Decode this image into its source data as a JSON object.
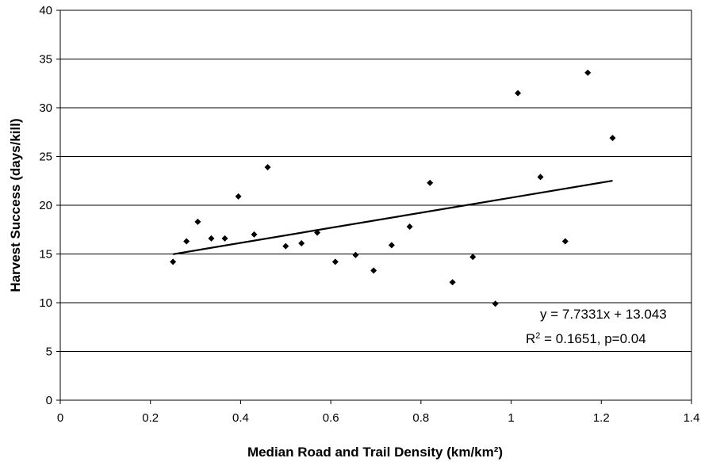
{
  "chart_data": {
    "type": "scatter",
    "title": "",
    "xlabel": "Median Road and Trail Density (km/km²)",
    "ylabel": "Harvest Success (days/kill)",
    "xlim": [
      0,
      1.4
    ],
    "ylim": [
      0,
      40
    ],
    "x_ticks": [
      "0",
      "0.2",
      "0.4",
      "0.6",
      "0.8",
      "1",
      "1.2",
      "1.4"
    ],
    "y_ticks": [
      "0",
      "5",
      "10",
      "15",
      "20",
      "25",
      "30",
      "35",
      "40"
    ],
    "grid": "horizontal",
    "points": [
      {
        "x": 0.25,
        "y": 14.2
      },
      {
        "x": 0.28,
        "y": 16.3
      },
      {
        "x": 0.305,
        "y": 18.3
      },
      {
        "x": 0.335,
        "y": 16.6
      },
      {
        "x": 0.365,
        "y": 16.6
      },
      {
        "x": 0.395,
        "y": 20.9
      },
      {
        "x": 0.43,
        "y": 17.0
      },
      {
        "x": 0.46,
        "y": 23.9
      },
      {
        "x": 0.5,
        "y": 15.8
      },
      {
        "x": 0.535,
        "y": 16.1
      },
      {
        "x": 0.57,
        "y": 17.2
      },
      {
        "x": 0.61,
        "y": 14.2
      },
      {
        "x": 0.655,
        "y": 14.9
      },
      {
        "x": 0.695,
        "y": 13.3
      },
      {
        "x": 0.735,
        "y": 15.9
      },
      {
        "x": 0.775,
        "y": 17.8
      },
      {
        "x": 0.82,
        "y": 22.3
      },
      {
        "x": 0.87,
        "y": 12.1
      },
      {
        "x": 0.915,
        "y": 14.7
      },
      {
        "x": 0.965,
        "y": 9.9
      },
      {
        "x": 1.015,
        "y": 31.5
      },
      {
        "x": 1.065,
        "y": 22.9
      },
      {
        "x": 1.12,
        "y": 16.3
      },
      {
        "x": 1.17,
        "y": 33.6
      },
      {
        "x": 1.225,
        "y": 26.9
      }
    ],
    "trendline": {
      "slope": 7.7331,
      "intercept": 13.043,
      "x_start": 0.25,
      "x_end": 1.225
    },
    "annotations": {
      "equation": "y = 7.7331x + 13.043",
      "r2_label": "R",
      "r2_sup": "2",
      "r2_rest": " = 0.1651, p=0.04"
    }
  }
}
